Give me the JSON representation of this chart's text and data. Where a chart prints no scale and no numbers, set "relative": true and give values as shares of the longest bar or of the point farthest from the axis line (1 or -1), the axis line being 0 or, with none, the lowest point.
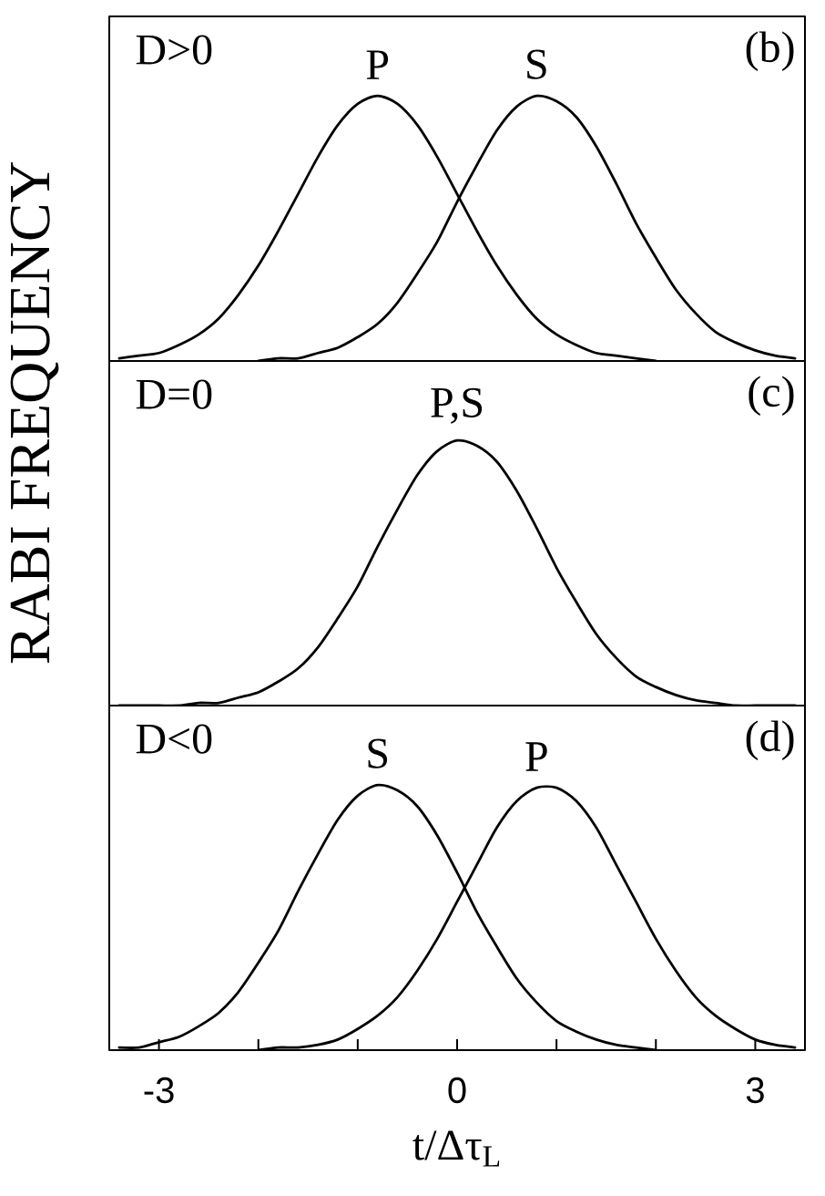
{
  "chart_data": [
    {
      "type": "line",
      "relative": true,
      "xlim": [
        -3.5,
        3.5
      ],
      "tick_labels": false,
      "series": [
        {
          "name": "P",
          "color": "#000000",
          "x": [
            -3.4,
            -3.2,
            -3.0,
            -2.8,
            -2.6,
            -2.4,
            -2.2,
            -2.0,
            -1.8,
            -1.6,
            -1.4,
            -1.2,
            -1.0,
            -0.8,
            -0.6,
            -0.4,
            -0.2,
            0,
            0.2,
            0.4,
            0.6,
            0.8,
            1.0,
            1.2,
            1.4,
            1.6,
            1.8,
            2.0
          ],
          "values": [
            0.01,
            0.02,
            0.03,
            0.06,
            0.1,
            0.16,
            0.25,
            0.36,
            0.49,
            0.63,
            0.77,
            0.89,
            0.97,
            1.0,
            0.97,
            0.89,
            0.77,
            0.63,
            0.49,
            0.36,
            0.25,
            0.16,
            0.1,
            0.06,
            0.03,
            0.02,
            0.01,
            0
          ]
        },
        {
          "name": "S",
          "color": "#000000",
          "x": [
            -2.0,
            -1.8,
            -1.6,
            -1.4,
            -1.2,
            -1.0,
            -0.8,
            -0.6,
            -0.4,
            -0.2,
            0,
            0.2,
            0.4,
            0.6,
            0.8,
            1.0,
            1.2,
            1.4,
            1.6,
            1.8,
            2.0,
            2.2,
            2.4,
            2.6,
            2.8,
            3.0,
            3.2,
            3.4
          ],
          "values": [
            0,
            0.01,
            0.01,
            0.03,
            0.05,
            0.09,
            0.14,
            0.22,
            0.33,
            0.45,
            0.6,
            0.74,
            0.87,
            0.96,
            1.0,
            0.98,
            0.92,
            0.81,
            0.67,
            0.52,
            0.39,
            0.27,
            0.18,
            0.11,
            0.07,
            0.04,
            0.02,
            0.01
          ]
        }
      ],
      "annotations": [
        "D>0",
        "(b)"
      ]
    },
    {
      "type": "line",
      "relative": true,
      "xlim": [
        -3.5,
        3.5
      ],
      "tick_labels": false,
      "ylabel": "RABI FREQUENCY",
      "x": [
        -3.4,
        -3.2,
        -3.0,
        -2.8,
        -2.6,
        -2.4,
        -2.2,
        -2.0,
        -1.8,
        -1.6,
        -1.4,
        -1.2,
        -1.0,
        -0.8,
        -0.6,
        -0.4,
        -0.2,
        0,
        0.2,
        0.4,
        0.6,
        0.8,
        1.0,
        1.2,
        1.4,
        1.6,
        1.8,
        2.0,
        2.2,
        2.4,
        2.6,
        2.8,
        3.0,
        3.2,
        3.4
      ],
      "series": [
        {
          "name": "P,S",
          "color": "#000000",
          "values": [
            0,
            0,
            0,
            0,
            0.01,
            0.01,
            0.03,
            0.05,
            0.09,
            0.14,
            0.22,
            0.33,
            0.45,
            0.6,
            0.74,
            0.87,
            0.96,
            1.0,
            0.98,
            0.92,
            0.81,
            0.67,
            0.52,
            0.39,
            0.27,
            0.18,
            0.11,
            0.07,
            0.04,
            0.02,
            0.01,
            0,
            0,
            0,
            0
          ]
        }
      ],
      "annotations": [
        "D=0",
        "(c)"
      ]
    },
    {
      "type": "line",
      "relative": true,
      "xlim": [
        -3.5,
        3.5
      ],
      "tick_labels": "x",
      "xlabel": "t/Δτ$_{L}$",
      "xticks": [
        -3,
        {
          "value": -2,
          "label": null
        },
        {
          "value": -1,
          "label": null
        },
        0,
        {
          "value": 1,
          "label": null
        },
        {
          "value": 2,
          "label": null
        },
        3
      ],
      "series": [
        {
          "name": "S",
          "color": "#000000",
          "x": [
            -3.4,
            -3.2,
            -3.0,
            -2.8,
            -2.6,
            -2.4,
            -2.2,
            -2.0,
            -1.8,
            -1.6,
            -1.4,
            -1.2,
            -1.0,
            -0.8,
            -0.6,
            -0.4,
            -0.2,
            0,
            0.2,
            0.4,
            0.6,
            0.8,
            1.0,
            1.2,
            1.4,
            1.6,
            1.8,
            2.0
          ],
          "values": [
            0.01,
            0.01,
            0.03,
            0.05,
            0.09,
            0.14,
            0.22,
            0.33,
            0.45,
            0.6,
            0.74,
            0.87,
            0.96,
            1.0,
            0.98,
            0.92,
            0.81,
            0.67,
            0.52,
            0.39,
            0.27,
            0.18,
            0.11,
            0.07,
            0.04,
            0.02,
            0.01,
            0
          ]
        },
        {
          "name": "P",
          "color": "#000000",
          "x": [
            -2.0,
            -1.8,
            -1.6,
            -1.4,
            -1.2,
            -1.0,
            -0.8,
            -0.6,
            -0.4,
            -0.2,
            0,
            0.2,
            0.4,
            0.6,
            0.8,
            1.0,
            1.2,
            1.4,
            1.6,
            1.8,
            2.0,
            2.2,
            2.4,
            2.6,
            2.8,
            3.0,
            3.2,
            3.4
          ],
          "values": [
            0,
            0.01,
            0.01,
            0.02,
            0.04,
            0.08,
            0.13,
            0.2,
            0.3,
            0.42,
            0.56,
            0.7,
            0.84,
            0.94,
            0.99,
            0.99,
            0.94,
            0.84,
            0.7,
            0.56,
            0.42,
            0.3,
            0.2,
            0.13,
            0.08,
            0.04,
            0.02,
            0.01
          ]
        }
      ],
      "annotations": [
        "D<0",
        "(d)"
      ]
    }
  ]
}
